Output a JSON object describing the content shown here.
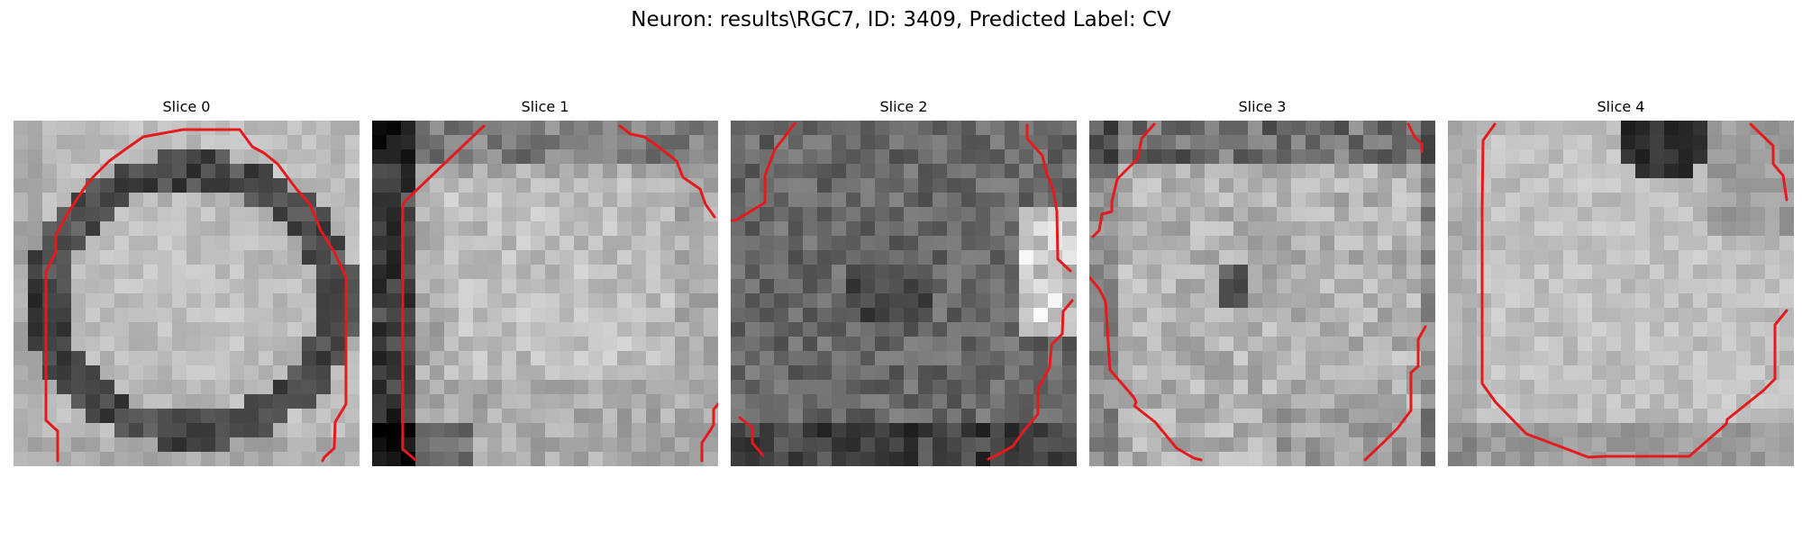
{
  "figure": {
    "title": "Neuron: results\\RGC7, ID: 3409, Predicted Label: CV"
  },
  "panels": [
    {
      "title": "Slice 0",
      "image_description": "grayscale pixelated cell crop with dark ring around bright interior and red contour around the top-left-right boundary",
      "contour_color": "#e41a1c"
    },
    {
      "title": "Slice 1",
      "image_description": "grayscale pixelated cell crop with dark left edge, bright center and red contour fragments on left and right",
      "contour_color": "#e41a1c"
    },
    {
      "title": "Slice 2",
      "image_description": "darker grayscale cell crop with bright right edge and red contour fragments along left and right sides",
      "contour_color": "#e41a1c"
    },
    {
      "title": "Slice 3",
      "image_description": "grayscale speckled cell crop with red contour fragments around left, bottom and right",
      "contour_color": "#e41a1c"
    },
    {
      "title": "Slice 4",
      "image_description": "mostly bright grayscale crop with dark top patch and red contour forming a lower octagon",
      "contour_color": "#e41a1c"
    }
  ]
}
